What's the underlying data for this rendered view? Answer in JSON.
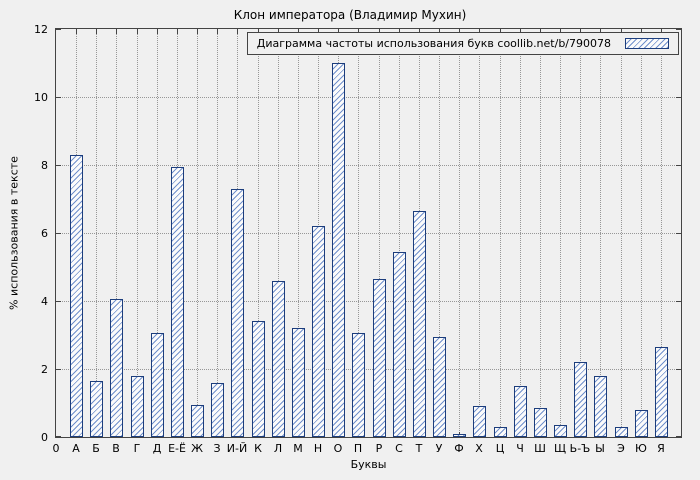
{
  "chart_data": {
    "type": "bar",
    "title": "Клон императора (Владимир Мухин)",
    "legend": "Диаграмма частоты использования букв coollib.net/b/790078",
    "legend_position": "top-right",
    "xlabel": "Буквы",
    "ylabel": "% использования в тексте",
    "origin_label": "0",
    "ylim": [
      0,
      12
    ],
    "yticks": [
      0,
      2,
      4,
      6,
      8,
      10,
      12
    ],
    "grid": true,
    "categories": [
      "А",
      "Б",
      "В",
      "Г",
      "Д",
      "Е-Ё",
      "Ж",
      "З",
      "И-Й",
      "К",
      "Л",
      "М",
      "Н",
      "О",
      "П",
      "Р",
      "С",
      "Т",
      "У",
      "Ф",
      "Х",
      "Ц",
      "Ч",
      "Ш",
      "Щ",
      "Ь-Ъ",
      "Ы",
      "Э",
      "Ю",
      "Я"
    ],
    "values": [
      8.3,
      1.65,
      4.05,
      1.8,
      3.05,
      7.95,
      0.95,
      1.6,
      7.3,
      3.4,
      4.6,
      3.2,
      6.2,
      11.0,
      3.05,
      4.65,
      5.45,
      6.65,
      2.95,
      0.1,
      0.9,
      0.3,
      1.5,
      0.85,
      0.35,
      2.2,
      1.8,
      0.3,
      0.8,
      2.65
    ],
    "colors": {
      "background": "#f0f0f0",
      "bar_fill": "#fbfbfb",
      "bar_hatch": "#7090cc",
      "bar_border": "#1c3d7c",
      "grid": "#979797",
      "axis": "#444444"
    }
  }
}
